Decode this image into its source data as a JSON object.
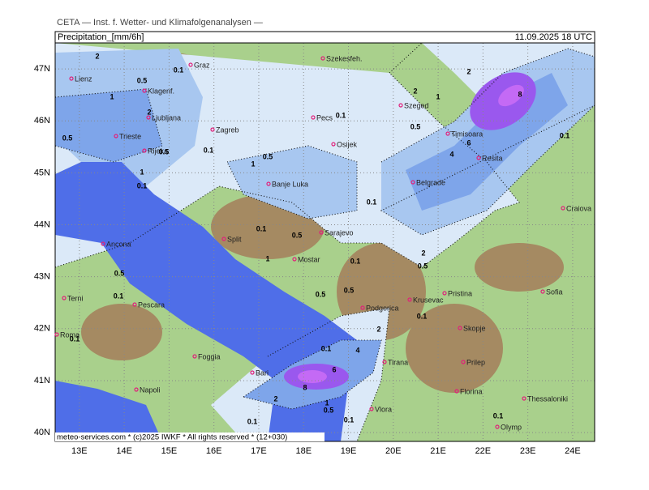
{
  "header": {
    "institute": "CETA — Inst. f. Wetter- und Klimafolgenanalysen —",
    "title": "Precipitation_[mm/6h]",
    "datetime": "11.09.2025 18 UTC"
  },
  "map": {
    "lonlim": [
      12.46,
      24.49
    ],
    "latlim": [
      39.83,
      47.5
    ],
    "lon_ticks": [
      {
        "value": 13,
        "label": "13E"
      },
      {
        "value": 14,
        "label": "14E"
      },
      {
        "value": 15,
        "label": "15E"
      },
      {
        "value": 16,
        "label": "16E"
      },
      {
        "value": 17,
        "label": "17E"
      },
      {
        "value": 18,
        "label": "18E"
      },
      {
        "value": 19,
        "label": "19E"
      },
      {
        "value": 20,
        "label": "20E"
      },
      {
        "value": 21,
        "label": "21E"
      },
      {
        "value": 22,
        "label": "22E"
      },
      {
        "value": 23,
        "label": "23E"
      },
      {
        "value": 24,
        "label": "24E"
      }
    ],
    "lat_ticks": [
      {
        "value": 47,
        "label": "47N"
      },
      {
        "value": 46,
        "label": "46N"
      },
      {
        "value": 45,
        "label": "45N"
      },
      {
        "value": 44,
        "label": "44N"
      },
      {
        "value": 43,
        "label": "43N"
      },
      {
        "value": 42,
        "label": "42N"
      },
      {
        "value": 41,
        "label": "41N"
      },
      {
        "value": 40,
        "label": "40N"
      }
    ],
    "cities": [
      "Szekesfeh.",
      "Graz",
      "Lienz",
      "Klagenf.",
      "Ljubljana",
      "Zagreb",
      "Pecs",
      "Szeged",
      "Timisoara",
      "Resita",
      "Osijek",
      "Trieste",
      "Rijeka",
      "Banje Luka",
      "Belgrade",
      "Craiova",
      "Sarajevo",
      "Split",
      "Ancona",
      "Mostar",
      "Krusevac",
      "Pristina",
      "Sofia",
      "Terni",
      "Pescara",
      "Podgorica",
      "Skopje",
      "Roma",
      "Foggia",
      "Tirana",
      "Prilep",
      "Bari",
      "Napoli",
      "Florina",
      "Thessaloniki",
      "Vlora",
      "Olymp"
    ],
    "contour_labels": [
      2,
      0.5,
      0.1,
      1,
      2,
      0.5,
      0.5,
      0.1,
      1,
      0.1,
      0.5,
      1,
      0.1,
      0.5,
      2,
      1,
      2,
      8,
      6,
      4,
      0.1,
      0.1,
      0.5,
      1,
      0.5,
      0.1,
      0.1,
      0.1,
      2,
      0.5,
      0.5,
      0.5,
      0.1,
      2,
      4,
      6,
      8,
      0.1,
      2,
      1,
      0.5,
      0.1,
      0.1,
      0.1,
      0.1
    ]
  },
  "footer": "meteo-services.com * (c)2025 IWKF * All rights reserved * (12+030)"
}
